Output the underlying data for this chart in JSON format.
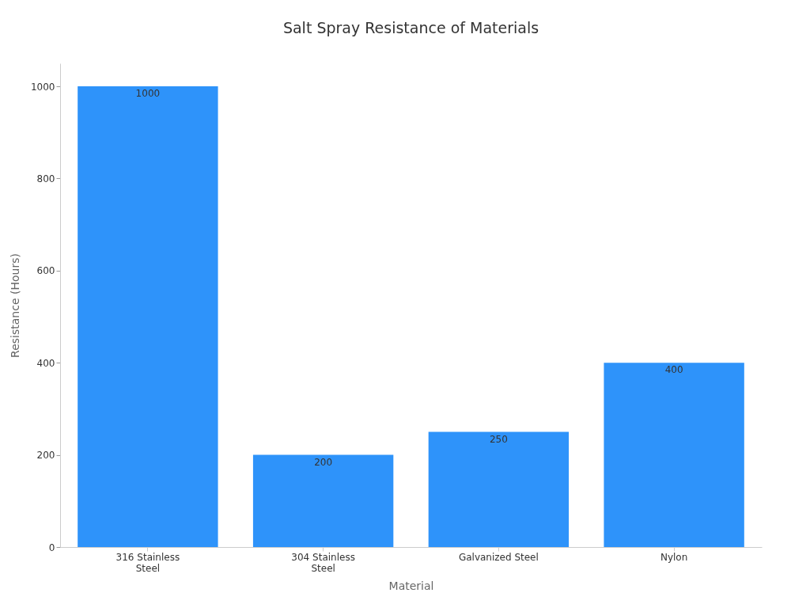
{
  "chart_data": {
    "type": "bar",
    "title": "Salt Spray Resistance of Materials",
    "xlabel": "Material",
    "ylabel": "Resistance (Hours)",
    "categories": [
      "316 Stainless Steel",
      "304 Stainless Steel",
      "Galvanized Steel",
      "Nylon"
    ],
    "values": [
      1000,
      200,
      250,
      400
    ],
    "color": "#2e93fa",
    "ylim": [
      0,
      1050
    ],
    "yticks": [
      0,
      200,
      400,
      600,
      800,
      1000
    ],
    "grid": false,
    "data_labels": true
  }
}
